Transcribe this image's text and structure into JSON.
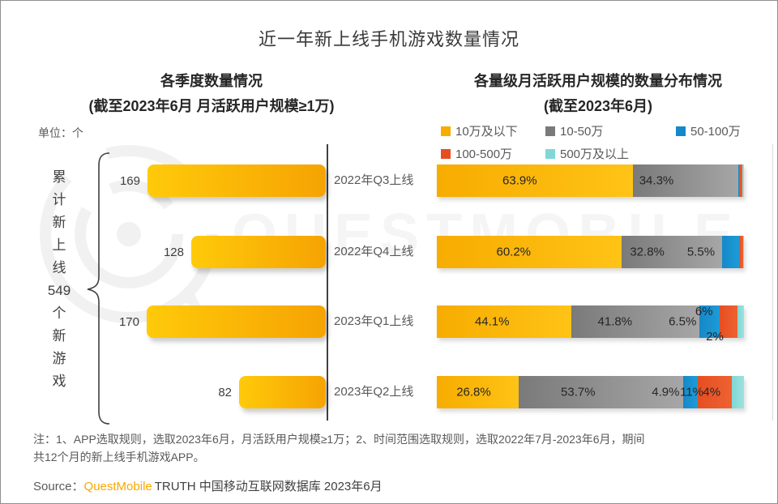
{
  "page_title": "近一年新上线手机游戏数量情况",
  "left_chart": {
    "title": "各季度数量情况",
    "subtitle": "(截至2023年6月 月活跃用户规模≥1万)",
    "unit_label": "单位：个",
    "cumulative_annotation": "累计新上线549个新游戏",
    "annotation_items": [
      "累",
      "计",
      "新",
      "上",
      "线",
      "549",
      "个",
      "新",
      "游",
      "戏"
    ]
  },
  "right_chart": {
    "title": "各量级月活跃用户规模的数量分布情况",
    "subtitle": "(截至2023年6月)"
  },
  "watermark_text": "QUESTMOBILE",
  "footnote": {
    "lines": [
      "注：1、APP选取规则，选取2023年6月，月活跃用户规模≥1万；2、时间范围选取规则，选取2022年7月-2023年6月，期间",
      "共12个月的新上线手机游戏APP。"
    ]
  },
  "source": {
    "prefix": "Source：",
    "brand": "QuestMobile",
    "rest": "TRUTH 中国移动互联网数据库 2023年6月"
  },
  "colors": {
    "accent_orange": "#f7a800",
    "axis": "#404040",
    "bar_yellow_light": "#ffca0a",
    "bar_yellow_dark": "#f6a302"
  },
  "chart_data": [
    {
      "type": "bar",
      "orientation": "horizontal-right-anchored",
      "title": "各季度数量情况",
      "subtitle": "(截至2023年6月 月活跃用户规模≥1万)",
      "unit": "个",
      "categories": [
        "2022年Q3上线",
        "2022年Q4上线",
        "2023年Q1上线",
        "2023年Q2上线"
      ],
      "values": [
        169,
        128,
        170,
        82
      ],
      "value_labels": [
        "169",
        "128",
        "170",
        "82"
      ],
      "total_annotation": "累计新上线549个新游戏",
      "xlim": [
        0,
        170
      ],
      "grid": false
    },
    {
      "type": "bar",
      "stacked": true,
      "orientation": "horizontal",
      "title": "各量级月活跃用户规模的数量分布情况",
      "subtitle": "(截至2023年6月)",
      "categories": [
        "2022年Q3上线",
        "2022年Q4上线",
        "2023年Q1上线",
        "2023年Q2上线"
      ],
      "legend_position": "top",
      "series": [
        {
          "name": "10万及以下",
          "color": "#f7ac00",
          "color2": "#ffc316",
          "values": [
            63.9,
            60.2,
            44.1,
            26.8
          ]
        },
        {
          "name": "10-50万",
          "color": "#7a7a7a",
          "color2": "#a6a6a6",
          "values": [
            34.3,
            32.8,
            41.8,
            53.7
          ]
        },
        {
          "name": "50-100万",
          "color": "#1588c9",
          "color2": "#1e9bd7",
          "values": [
            0.6,
            5.5,
            6.5,
            4.9
          ]
        },
        {
          "name": "100-500万",
          "color": "#e64e22",
          "color2": "#ee6230",
          "values": [
            0.7,
            1.2,
            6.0,
            11.0
          ]
        },
        {
          "name": "500万及以上",
          "color": "#80d7d5",
          "color2": "#9ce2df",
          "values": [
            0.5,
            0.3,
            2.0,
            4.0
          ]
        }
      ],
      "segment_labels": [
        [
          {
            "text": "63.9%",
            "x": 27,
            "pos": "in"
          },
          {
            "text": "34.3%",
            "x": 71.5,
            "pos": "in"
          }
        ],
        [
          {
            "text": "60.2%",
            "x": 25,
            "pos": "in"
          },
          {
            "text": "32.8%",
            "x": 68.5,
            "pos": "in"
          },
          {
            "text": "5.5%",
            "x": 86,
            "pos": "in"
          }
        ],
        [
          {
            "text": "44.1%",
            "x": 18,
            "pos": "in"
          },
          {
            "text": "41.8%",
            "x": 58,
            "pos": "in"
          },
          {
            "text": "6.5%",
            "x": 80,
            "pos": "in"
          },
          {
            "text": "6%",
            "x": 87,
            "pos": "above"
          },
          {
            "text": "2%",
            "x": 90.5,
            "pos": "below"
          }
        ],
        [
          {
            "text": "26.8%",
            "x": 12,
            "pos": "in"
          },
          {
            "text": "53.7%",
            "x": 46,
            "pos": "in"
          },
          {
            "text": "4.9%",
            "x": 74.5,
            "pos": "in"
          },
          {
            "text": "11%",
            "x": 83,
            "pos": "in"
          },
          {
            "text": "4%",
            "x": 89.5,
            "pos": "in"
          }
        ]
      ]
    }
  ]
}
